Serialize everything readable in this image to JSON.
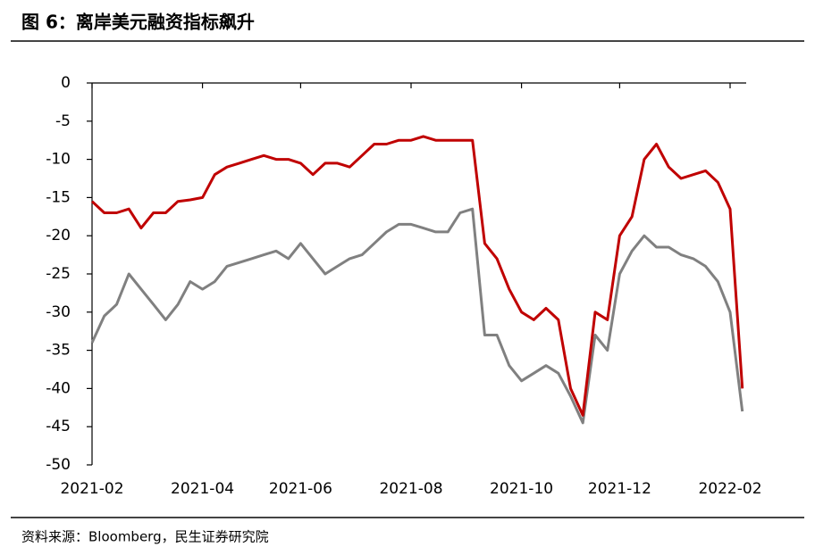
{
  "title": "图 6：离岸美元融资指标飙升",
  "source": "资料来源：Bloomberg，民生证券研究院",
  "chart_data": {
    "type": "line",
    "categories": [
      "2021-02",
      null,
      null,
      null,
      null,
      null,
      null,
      null,
      null,
      "2021-04",
      null,
      null,
      null,
      null,
      null,
      null,
      null,
      "2021-06",
      null,
      null,
      null,
      null,
      null,
      null,
      null,
      null,
      "2021-08",
      null,
      null,
      null,
      null,
      null,
      null,
      null,
      null,
      "2021-10",
      null,
      null,
      null,
      null,
      null,
      null,
      null,
      "2021-12",
      null,
      null,
      null,
      null,
      null,
      null,
      null,
      null,
      "2022-02",
      null
    ],
    "series": [
      {
        "color": "#c00000",
        "values": [
          -15.5,
          -17,
          -17,
          -16.5,
          -19,
          -17,
          -17,
          -15.5,
          -15.3,
          -15,
          -12,
          -11,
          -10.5,
          -10,
          -9.5,
          -10,
          -10,
          -10.5,
          -12,
          -10.5,
          -10.5,
          -11,
          -9.5,
          -8,
          -8,
          -7.5,
          -7.5,
          -7,
          -7.5,
          -7.5,
          -7.5,
          -7.5,
          -21,
          -23,
          -27,
          -30,
          -31,
          -29.5,
          -31,
          -40,
          -43.5,
          -30,
          -31,
          -20,
          -17.5,
          -10,
          -8,
          -11,
          -12.5,
          -12,
          -11.5,
          -13,
          -16.5,
          -40
        ]
      },
      {
        "color": "#808080",
        "values": [
          -34,
          -30.5,
          -29,
          -25,
          -27,
          -29,
          -31,
          -29,
          -26,
          -27,
          -26,
          -24,
          -23.5,
          -23,
          -22.5,
          -22,
          -23,
          -21,
          -23,
          -25,
          -24,
          -23,
          -22.5,
          -21,
          -19.5,
          -18.5,
          -18.5,
          -19,
          -19.5,
          -19.5,
          -17,
          -16.5,
          -33,
          -33,
          -37,
          -39,
          -38,
          -37,
          -38,
          -41,
          -44.5,
          -33,
          -35,
          -25,
          -22,
          -20,
          -21.5,
          -21.5,
          -22.5,
          -23,
          -24,
          -26,
          -30,
          -43
        ]
      }
    ],
    "ylim": [
      -50,
      0
    ],
    "yticks": [
      0,
      -5,
      -10,
      -15,
      -20,
      -25,
      -30,
      -35,
      -40,
      -45,
      -50
    ]
  }
}
